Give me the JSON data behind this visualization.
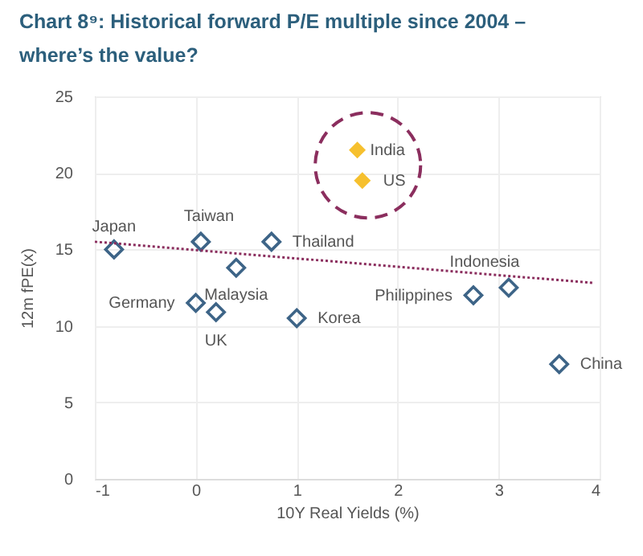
{
  "chart_data": {
    "type": "scatter",
    "title": "Chart 8⁹: Historical forward P/E multiple since 2004 – where’s the value?",
    "xlabel": "10Y Real Yields (%)",
    "ylabel": "12m fPE(x)",
    "xlim": [
      -1,
      4
    ],
    "xticks": [
      -1,
      0,
      1,
      2,
      3,
      4
    ],
    "ylim": [
      0,
      25
    ],
    "yticks": [
      0,
      5,
      10,
      15,
      20,
      25
    ],
    "grid": true,
    "marker": "diamond",
    "series": [
      {
        "color": "#3d6487",
        "x": [
          -0.81,
          0.05,
          0.4,
          0.75,
          0.0,
          0.2,
          1.0,
          2.75,
          3.1,
          3.6
        ],
        "values": [
          15.0,
          15.5,
          13.8,
          15.5,
          11.5,
          10.9,
          10.5,
          12.0,
          12.5,
          7.5
        ]
      },
      {
        "color": "#f6c02e",
        "x": [
          1.6,
          1.65
        ],
        "values": [
          21.5,
          19.5
        ]
      },
      {
        "type": "line",
        "color": "#8b2e5e",
        "line_style": "dotted",
        "marker": "none",
        "x": [
          -1,
          3.95
        ],
        "values": [
          15.5,
          12.8
        ]
      }
    ],
    "annotations": [
      {
        "text": "Japan",
        "x": -0.81,
        "y": 15.0
      },
      {
        "text": "Taiwan",
        "x": 0.05,
        "y": 15.5
      },
      {
        "text": "Malaysia",
        "x": 0.4,
        "y": 13.8
      },
      {
        "text": "Thailand",
        "x": 0.75,
        "y": 15.5
      },
      {
        "text": "Germany",
        "x": 0.0,
        "y": 11.5
      },
      {
        "text": "UK",
        "x": 0.2,
        "y": 10.9
      },
      {
        "text": "Korea",
        "x": 1.0,
        "y": 10.5
      },
      {
        "text": "Philippines",
        "x": 2.75,
        "y": 12.0
      },
      {
        "text": "Indonesia",
        "x": 3.1,
        "y": 12.5
      },
      {
        "text": "China",
        "x": 3.6,
        "y": 7.5
      },
      {
        "text": "India",
        "x": 1.6,
        "y": 21.5
      },
      {
        "text": "US",
        "x": 1.65,
        "y": 19.5
      }
    ]
  }
}
